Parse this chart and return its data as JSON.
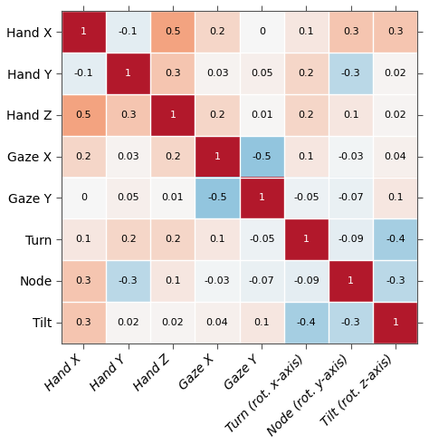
{
  "labels_y": [
    "Hand X",
    "Hand Y",
    "Hand Z",
    "Gaze X",
    "Gaze Y",
    "Turn",
    "Node",
    "Tilt"
  ],
  "labels_x": [
    "Hand X",
    "Hand Y",
    "Hand Z",
    "Gaze X",
    "Gaze Y",
    "Turn (rot. x-axis)",
    "Node (rot. y-axis)",
    "Tilt (rot. z-axis)"
  ],
  "matrix": [
    [
      1,
      -0.1,
      0.5,
      0.2,
      0,
      0.1,
      0.3,
      0.3
    ],
    [
      -0.1,
      1,
      0.3,
      0.03,
      0.05,
      0.2,
      -0.3,
      0.02
    ],
    [
      0.5,
      0.3,
      1,
      0.2,
      0.01,
      0.2,
      0.1,
      0.02
    ],
    [
      0.2,
      0.03,
      0.2,
      1,
      -0.5,
      0.1,
      -0.03,
      0.04
    ],
    [
      0,
      0.05,
      0.01,
      -0.5,
      1,
      -0.05,
      -0.07,
      0.1
    ],
    [
      0.1,
      0.2,
      0.2,
      0.1,
      -0.05,
      1,
      -0.09,
      -0.4
    ],
    [
      0.3,
      -0.3,
      0.1,
      -0.03,
      -0.07,
      -0.09,
      1,
      -0.3
    ],
    [
      0.3,
      0.02,
      0.02,
      0.04,
      0.1,
      -0.4,
      -0.3,
      1
    ]
  ],
  "vmin": -1,
  "vmax": 1,
  "cmap_colors": [
    "#2166ac",
    "#92c5de",
    "#f7f7f7",
    "#f4a582",
    "#b2182b"
  ],
  "fontsize_cells": 8,
  "fontsize_labels": 10,
  "figsize": [
    4.74,
    4.91
  ],
  "dpi": 100,
  "bg_color": "#f0f0f0"
}
